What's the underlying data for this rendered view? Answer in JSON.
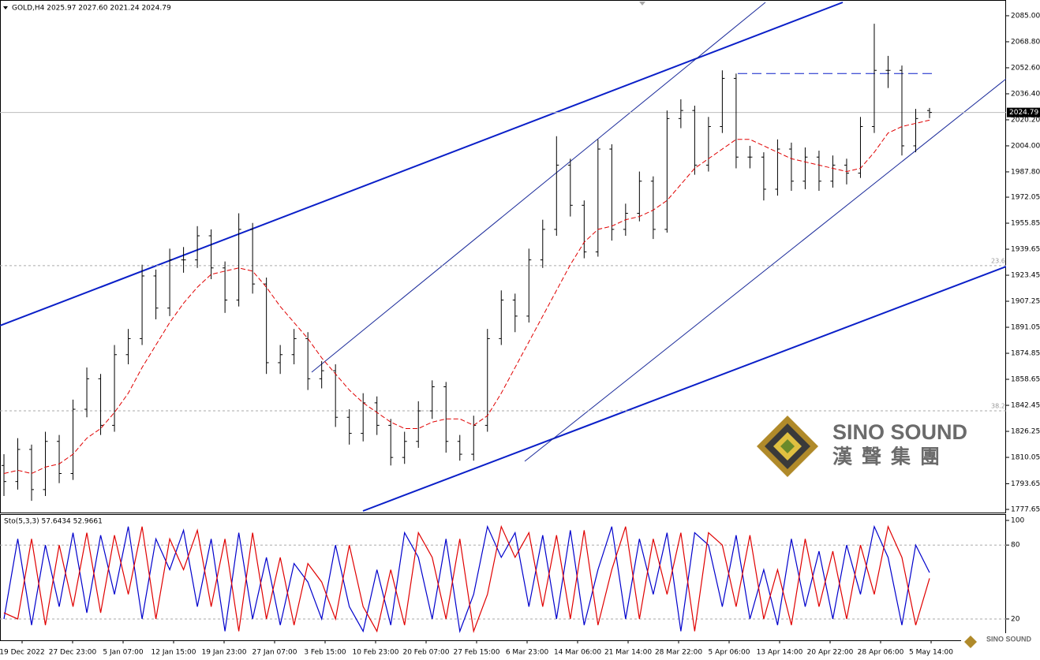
{
  "chart_data": {
    "type": "ohlc",
    "header": "GOLD,H4  2025.97 2027.60 2021.24 2024.79",
    "ylim": [
      1775.7,
      2094.8
    ],
    "yticks": [
      {
        "value": 2085,
        "label": "2085.00"
      },
      {
        "value": 2068.8,
        "label": "2068.80"
      },
      {
        "value": 2052.6,
        "label": "2052.60"
      },
      {
        "value": 2036.4,
        "label": "2036.40"
      },
      {
        "value": 2020.2,
        "label": "2020.20"
      },
      {
        "value": 2004,
        "label": "2004.00"
      },
      {
        "value": 1987.8,
        "label": "1987.80"
      },
      {
        "value": 1972.05,
        "label": "1972.05"
      },
      {
        "value": 1955.85,
        "label": "1955.85"
      },
      {
        "value": 1939.65,
        "label": "1939.65"
      },
      {
        "value": 1923.45,
        "label": "1923.45"
      },
      {
        "value": 1907.25,
        "label": "1907.25"
      },
      {
        "value": 1891.05,
        "label": "1891.05"
      },
      {
        "value": 1874.85,
        "label": "1874.85"
      },
      {
        "value": 1858.65,
        "label": "1858.65"
      },
      {
        "value": 1842.45,
        "label": "1842.45"
      },
      {
        "value": 1826.25,
        "label": "1826.25"
      },
      {
        "value": 1810.05,
        "label": "1810.05"
      },
      {
        "value": 1793.65,
        "label": "1793.65"
      },
      {
        "value": 1777.65,
        "label": "1777.65"
      }
    ],
    "color": "#000000",
    "open": [
      1805,
      1795,
      1815,
      1790,
      1820,
      1800,
      1840,
      1859,
      1830,
      1874,
      1884,
      1923,
      1903,
      1933,
      1933,
      1948,
      1928,
      1908,
      1952,
      1918,
      1869,
      1874,
      1884,
      1859,
      1864,
      1835,
      1825,
      1844,
      1830,
      1810,
      1820,
      1839,
      1854,
      1820,
      1812,
      1830,
      1884,
      1908,
      1898,
      1933,
      1952,
      1992,
      1967,
      1938,
      2002,
      1952,
      1962,
      1982,
      1952,
      2021,
      2026,
      1992,
      2016,
      2046,
      1997,
      1997,
      1977,
      2002,
      1982,
      1997,
      1982,
      1992,
      1987,
      2016,
      2051,
      2051,
      2004,
      2025.97
    ],
    "high": [
      1812,
      1822,
      1818,
      1826,
      1824,
      1846,
      1866,
      1862,
      1880,
      1890,
      1930,
      1927,
      1940,
      1941,
      1954,
      1952,
      1932,
      1962,
      1956,
      1922,
      1880,
      1890,
      1888,
      1870,
      1868,
      1840,
      1850,
      1848,
      1834,
      1826,
      1845,
      1858,
      1857,
      1824,
      1836,
      1890,
      1914,
      1912,
      1940,
      1958,
      2010,
      1996,
      1970,
      2008,
      2005,
      1968,
      1988,
      1985,
      2026,
      2033,
      2029,
      2022,
      2051,
      2049,
      2004,
      2000,
      2008,
      2006,
      2003,
      2001,
      1998,
      1996,
      2022,
      2080,
      2060,
      2054,
      2027,
      2027.6
    ],
    "low": [
      1786,
      1790,
      1783,
      1786,
      1794,
      1796,
      1835,
      1824,
      1826,
      1868,
      1880,
      1896,
      1898,
      1925,
      1928,
      1921,
      1900,
      1904,
      1912,
      1862,
      1862,
      1868,
      1852,
      1853,
      1829,
      1818,
      1820,
      1824,
      1805,
      1806,
      1816,
      1834,
      1813,
      1808,
      1808,
      1826,
      1880,
      1888,
      1894,
      1928,
      1948,
      1960,
      1934,
      1935,
      1945,
      1948,
      1957,
      1946,
      1950,
      2015,
      1986,
      1988,
      2012,
      1990,
      1990,
      1970,
      1973,
      1976,
      1977,
      1976,
      1978,
      1980,
      1984,
      2012,
      2040,
      1998,
      2000,
      2021.24
    ],
    "close": [
      1795,
      1815,
      1790,
      1820,
      1800,
      1840,
      1859,
      1830,
      1874,
      1884,
      1923,
      1903,
      1933,
      1933,
      1948,
      1928,
      1908,
      1952,
      1918,
      1869,
      1874,
      1884,
      1859,
      1864,
      1835,
      1825,
      1844,
      1830,
      1810,
      1820,
      1839,
      1854,
      1820,
      1812,
      1830,
      1884,
      1908,
      1898,
      1933,
      1952,
      1992,
      1967,
      1938,
      2002,
      1952,
      1962,
      1982,
      1952,
      2021,
      2026,
      1992,
      2016,
      2046,
      1997,
      1997,
      1977,
      2002,
      1982,
      1997,
      1982,
      1992,
      1987,
      2016,
      2051,
      2051,
      2004,
      2021,
      2024.79
    ],
    "ma": {
      "color": "#e00000",
      "values": [
        1800,
        1802,
        1800,
        1804,
        1806,
        1812,
        1822,
        1828,
        1838,
        1850,
        1866,
        1880,
        1894,
        1906,
        1916,
        1924,
        1926,
        1928,
        1926,
        1916,
        1904,
        1894,
        1884,
        1872,
        1862,
        1852,
        1844,
        1838,
        1832,
        1828,
        1828,
        1832,
        1834,
        1834,
        1830,
        1836,
        1850,
        1866,
        1882,
        1898,
        1914,
        1930,
        1944,
        1952,
        1954,
        1958,
        1960,
        1964,
        1970,
        1980,
        1990,
        1996,
        2002,
        2008,
        2008,
        2004,
        2000,
        1996,
        1994,
        1992,
        1990,
        1988,
        1990,
        2000,
        2012,
        2016,
        2018,
        2020
      ]
    },
    "resistance": 2049,
    "levels": [
      {
        "label": "23.6",
        "value": 1929.4
      },
      {
        "label": "38.2",
        "value": 1839
      }
    ],
    "x_labels": [
      "19 Dec 2022",
      "27 Dec 23:00",
      "5 Jan 07:00",
      "12 Jan 15:00",
      "19 Jan 23:00",
      "27 Jan 07:00",
      "3 Feb 15:00",
      "10 Feb 23:00",
      "20 Feb 07:00",
      "27 Feb 15:00",
      "6 Mar 23:00",
      "14 Mar 06:00",
      "21 Mar 14:00",
      "28 Mar 22:00",
      "5 Apr 06:00",
      "13 Apr 14:00",
      "20 Apr 22:00",
      "28 Apr 06:00",
      "5 May 14:00"
    ],
    "watermark": {
      "name": "SINO SOUND",
      "chinese": "漢聲集團"
    },
    "stoch": {
      "title": "Sto(5,3,3) 57.6434 52.9661",
      "ylim": [
        2.7,
        105.1
      ],
      "yticks": [
        20,
        80,
        100
      ],
      "series": [
        {
          "color": "#0000cc",
          "values": [
            20,
            85,
            15,
            80,
            30,
            90,
            25,
            88,
            40,
            95,
            20,
            85,
            60,
            92,
            30,
            85,
            10,
            90,
            20,
            70,
            15,
            65,
            50,
            20,
            80,
            30,
            10,
            60,
            15,
            90,
            70,
            20,
            85,
            10,
            40,
            95,
            70,
            90,
            30,
            88,
            20,
            92,
            15,
            60,
            95,
            20,
            85,
            40,
            90,
            10,
            90,
            80,
            30,
            88,
            20,
            60,
            15,
            85,
            30,
            75,
            20,
            80,
            40,
            95,
            70,
            15,
            80,
            57.6434
          ]
        },
        {
          "color": "#e00000",
          "values": [
            25,
            20,
            85,
            15,
            80,
            30,
            90,
            25,
            88,
            40,
            95,
            20,
            85,
            60,
            92,
            30,
            85,
            10,
            90,
            20,
            70,
            15,
            65,
            50,
            20,
            80,
            30,
            10,
            60,
            15,
            90,
            70,
            20,
            85,
            10,
            40,
            95,
            70,
            90,
            30,
            88,
            20,
            92,
            15,
            60,
            95,
            20,
            85,
            40,
            90,
            10,
            90,
            80,
            30,
            88,
            20,
            60,
            15,
            85,
            30,
            75,
            20,
            80,
            40,
            95,
            70,
            15,
            52.9661
          ]
        }
      ]
    }
  }
}
